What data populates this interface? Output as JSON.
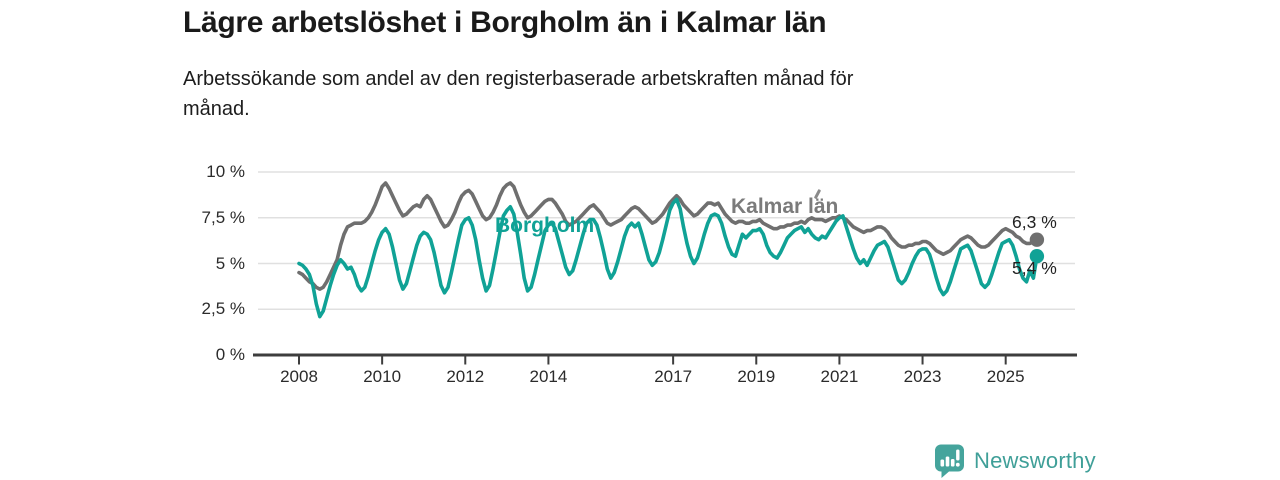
{
  "header": {
    "title": "Lägre arbetslöshet i Borgholm än i Kalmar län",
    "subtitle": "Arbetssökande som andel av den registerbaserade arbetskraften månad för\nmånad."
  },
  "chart_data": {
    "type": "line",
    "title": "Lägre arbetslöshet i Borgholm än i Kalmar län",
    "subtitle": "Arbetssökande som andel av den registerbaserade arbetskraften månad för månad.",
    "xlabel": "",
    "ylabel": "",
    "ylim": [
      0,
      10
    ],
    "grid": true,
    "legend": "inline-labels",
    "frequency": "monthly",
    "x_start": "2008-01",
    "x_end": "2025-10",
    "y_ticks": [
      {
        "value": 0,
        "label": "0 %"
      },
      {
        "value": 2.5,
        "label": "2,5 %"
      },
      {
        "value": 5,
        "label": "5 %"
      },
      {
        "value": 7.5,
        "label": "7,5 %"
      },
      {
        "value": 10,
        "label": "10 %"
      }
    ],
    "x_ticks": [
      {
        "year": 2008,
        "label": "2008"
      },
      {
        "year": 2010,
        "label": "2010"
      },
      {
        "year": 2012,
        "label": "2012"
      },
      {
        "year": 2014,
        "label": "2014"
      },
      {
        "year": 2017,
        "label": "2017"
      },
      {
        "year": 2019,
        "label": "2019"
      },
      {
        "year": 2021,
        "label": "2021"
      },
      {
        "year": 2023,
        "label": "2023"
      },
      {
        "year": 2025,
        "label": "2025"
      }
    ],
    "series": [
      {
        "name": "Kalmar län",
        "color": "#6f6f6f",
        "end_value": 6.3,
        "end_label": "6,3 %",
        "values": [
          4.5,
          4.4,
          4.2,
          4.0,
          3.9,
          3.7,
          3.6,
          3.7,
          4.0,
          4.4,
          4.8,
          5.2,
          6.0,
          6.6,
          7.0,
          7.1,
          7.2,
          7.2,
          7.2,
          7.3,
          7.5,
          7.8,
          8.2,
          8.7,
          9.2,
          9.4,
          9.1,
          8.7,
          8.3,
          7.9,
          7.6,
          7.7,
          7.9,
          8.1,
          8.2,
          8.1,
          8.5,
          8.7,
          8.5,
          8.1,
          7.7,
          7.3,
          7.0,
          7.1,
          7.4,
          7.8,
          8.3,
          8.7,
          8.9,
          9.0,
          8.8,
          8.4,
          8.0,
          7.6,
          7.4,
          7.5,
          7.8,
          8.2,
          8.7,
          9.1,
          9.3,
          9.4,
          9.2,
          8.7,
          8.2,
          7.8,
          7.5,
          7.6,
          7.8,
          8.0,
          8.2,
          8.4,
          8.5,
          8.5,
          8.3,
          8.0,
          7.7,
          7.3,
          7.1,
          7.2,
          7.3,
          7.5,
          7.7,
          7.9,
          8.1,
          8.2,
          8.0,
          7.8,
          7.5,
          7.2,
          7.1,
          7.2,
          7.3,
          7.4,
          7.6,
          7.8,
          8.0,
          8.1,
          8.0,
          7.8,
          7.6,
          7.4,
          7.2,
          7.3,
          7.5,
          7.7,
          8.0,
          8.3,
          8.5,
          8.7,
          8.5,
          8.2,
          8.0,
          7.8,
          7.6,
          7.7,
          7.9,
          8.1,
          8.3,
          8.3,
          8.2,
          8.3,
          8.0,
          7.7,
          7.5,
          7.3,
          7.2,
          7.3,
          7.3,
          7.2,
          7.2,
          7.3,
          7.3,
          7.4,
          7.2,
          7.1,
          7.0,
          6.9,
          6.9,
          7.0,
          7.0,
          7.1,
          7.1,
          7.2,
          7.2,
          7.3,
          7.2,
          7.4,
          7.5,
          7.4,
          7.4,
          7.4,
          7.3,
          7.4,
          7.5,
          7.5,
          7.6,
          7.5,
          7.4,
          7.2,
          7.0,
          6.9,
          6.8,
          6.7,
          6.8,
          6.8,
          6.9,
          7.0,
          7.0,
          6.9,
          6.7,
          6.4,
          6.2,
          6.0,
          5.9,
          5.9,
          6.0,
          6.0,
          6.1,
          6.1,
          6.2,
          6.2,
          6.1,
          5.9,
          5.7,
          5.6,
          5.5,
          5.6,
          5.7,
          5.9,
          6.1,
          6.3,
          6.4,
          6.5,
          6.4,
          6.2,
          6.0,
          5.9,
          5.9,
          6.0,
          6.2,
          6.4,
          6.6,
          6.8,
          6.9,
          6.8,
          6.7,
          6.5,
          6.4,
          6.2,
          6.1,
          6.1,
          6.2,
          6.3
        ]
      },
      {
        "name": "Borgholm",
        "color": "#10a296",
        "end_value": 5.4,
        "end_label": "5,4 %",
        "values": [
          5.0,
          4.9,
          4.7,
          4.4,
          3.8,
          2.8,
          2.1,
          2.4,
          3.1,
          3.8,
          4.4,
          4.9,
          5.2,
          5.0,
          4.7,
          4.8,
          4.4,
          3.8,
          3.5,
          3.7,
          4.3,
          5.0,
          5.7,
          6.3,
          6.7,
          6.9,
          6.6,
          5.9,
          5.0,
          4.1,
          3.6,
          3.9,
          4.6,
          5.3,
          6.0,
          6.5,
          6.7,
          6.6,
          6.3,
          5.6,
          4.7,
          3.8,
          3.4,
          3.7,
          4.5,
          5.4,
          6.3,
          7.1,
          7.4,
          7.5,
          7.1,
          6.3,
          5.2,
          4.2,
          3.5,
          3.8,
          4.7,
          5.7,
          6.7,
          7.6,
          7.9,
          8.1,
          7.7,
          6.7,
          5.5,
          4.2,
          3.5,
          3.7,
          4.4,
          5.2,
          6.0,
          6.8,
          7.1,
          7.2,
          6.9,
          6.2,
          5.5,
          4.8,
          4.4,
          4.6,
          5.2,
          5.9,
          6.6,
          7.2,
          7.4,
          7.4,
          7.1,
          6.4,
          5.6,
          4.7,
          4.2,
          4.5,
          5.1,
          5.8,
          6.5,
          7.0,
          7.2,
          7.0,
          7.2,
          6.6,
          5.9,
          5.2,
          4.9,
          5.1,
          5.6,
          6.3,
          7.1,
          7.9,
          8.3,
          8.5,
          8.0,
          7.0,
          6.1,
          5.4,
          5.0,
          5.3,
          5.9,
          6.6,
          7.2,
          7.6,
          7.7,
          7.6,
          7.2,
          6.5,
          5.9,
          5.5,
          5.4,
          6.0,
          6.6,
          6.4,
          6.6,
          6.8,
          6.8,
          6.9,
          6.6,
          6.0,
          5.6,
          5.4,
          5.3,
          5.6,
          6.0,
          6.4,
          6.6,
          6.8,
          6.9,
          7.0,
          6.7,
          6.9,
          6.6,
          6.4,
          6.3,
          6.5,
          6.4,
          6.7,
          7.0,
          7.3,
          7.5,
          7.6,
          7.0,
          6.4,
          5.8,
          5.3,
          5.0,
          5.2,
          4.9,
          5.3,
          5.7,
          6.0,
          6.1,
          6.2,
          5.9,
          5.3,
          4.7,
          4.1,
          3.9,
          4.1,
          4.5,
          5.0,
          5.4,
          5.7,
          5.8,
          5.8,
          5.5,
          4.9,
          4.2,
          3.6,
          3.3,
          3.5,
          4.0,
          4.6,
          5.2,
          5.8,
          5.9,
          6.0,
          5.7,
          5.1,
          4.5,
          3.9,
          3.7,
          3.9,
          4.4,
          5.0,
          5.6,
          6.1,
          6.2,
          6.3,
          6.0,
          5.4,
          4.7,
          4.2,
          4.0,
          4.6,
          4.2,
          5.4
        ]
      }
    ],
    "colors": {
      "borgholm": "#10a296",
      "kalmar": "#6f6f6f",
      "axis": "#3d3d3d",
      "gridline": "#e0e0e0",
      "brand_teal": "#45a49c"
    }
  },
  "footer": {
    "brand": "Newsworthy",
    "logo_icon": "newsworthy-bar-chart-bubble-icon"
  }
}
